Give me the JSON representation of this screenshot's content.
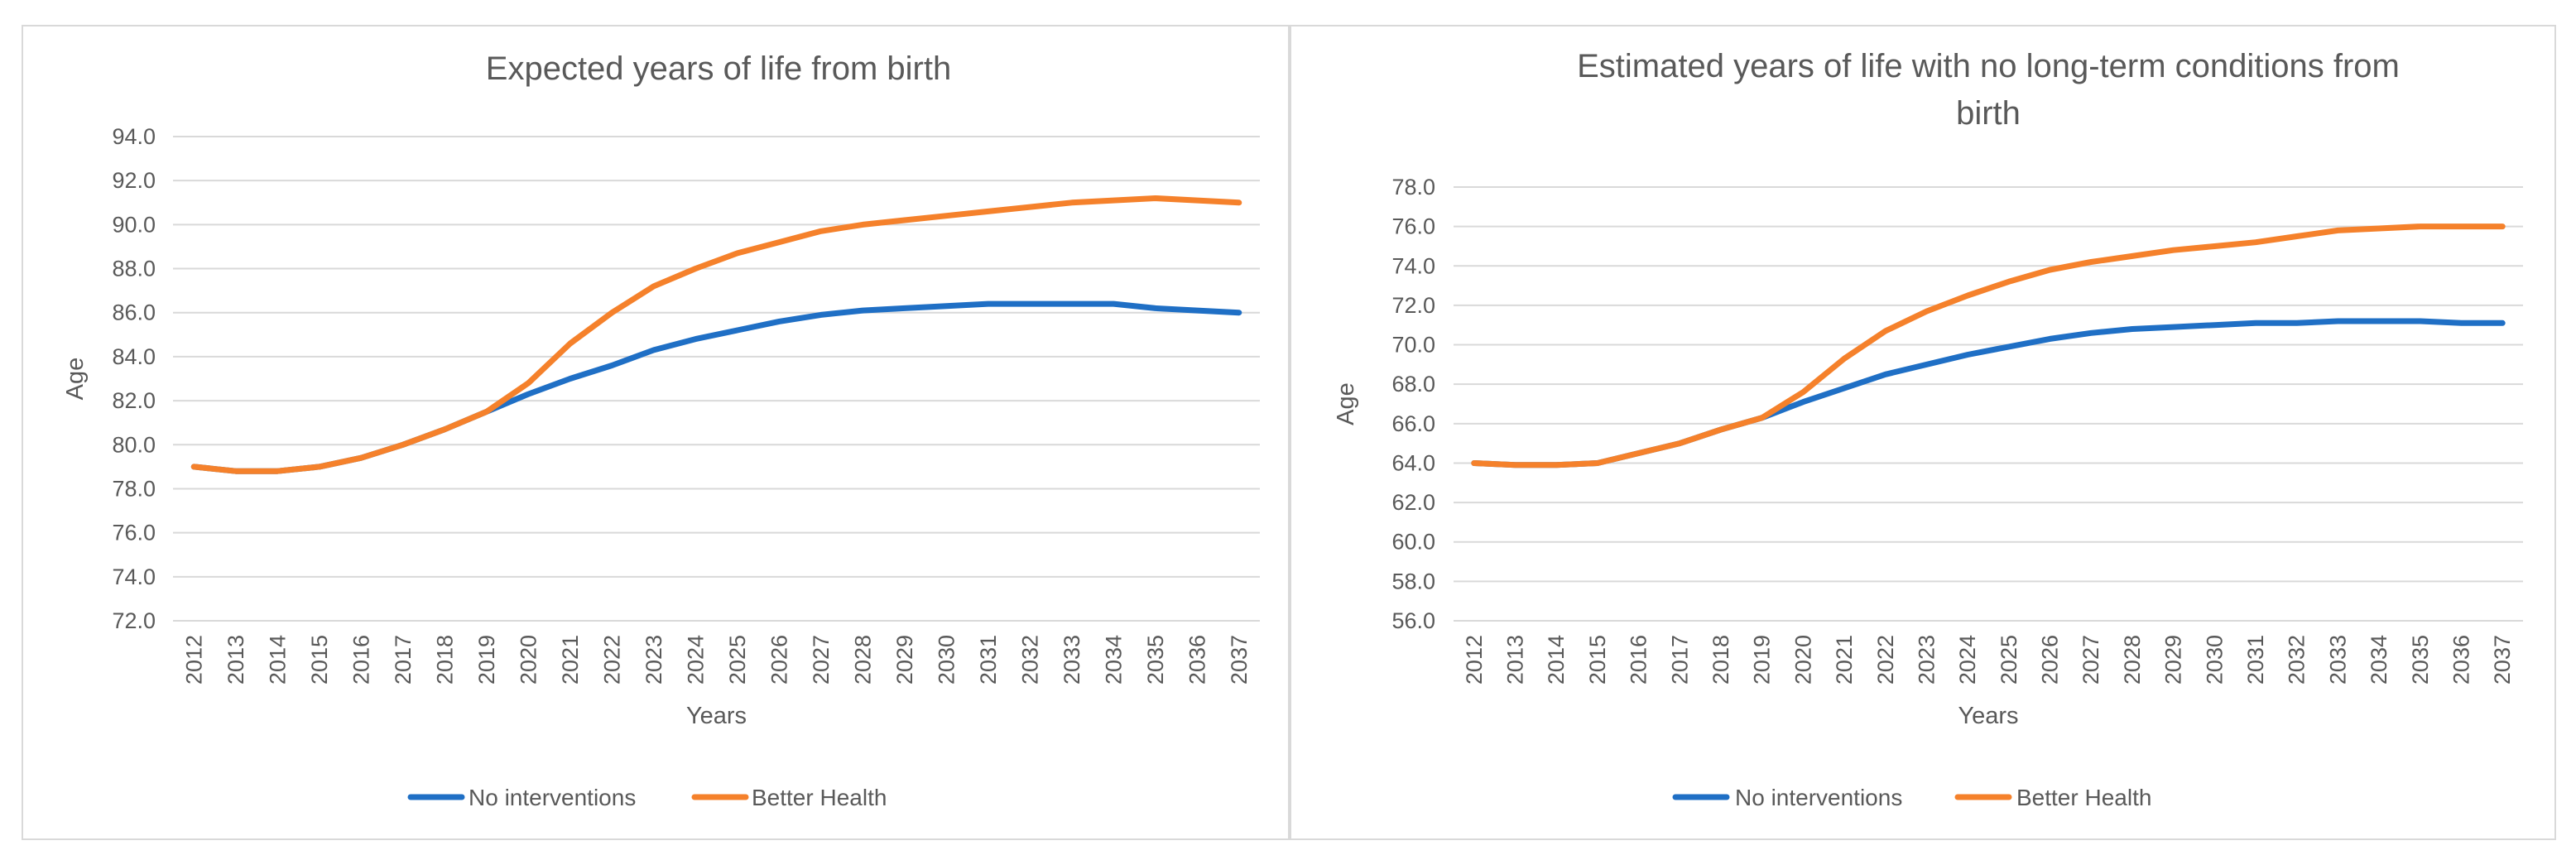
{
  "colors": {
    "no_interventions": "#1f6fc5",
    "better_health": "#f5812b"
  },
  "chart_data": [
    {
      "type": "line",
      "title": "Expected years of life from birth",
      "title_lines": [
        "Expected years of life from birth"
      ],
      "xlabel": "Years",
      "ylabel": "Age",
      "ylim": [
        72,
        94
      ],
      "yticks": [
        "72.0",
        "74.0",
        "76.0",
        "78.0",
        "80.0",
        "82.0",
        "84.0",
        "86.0",
        "88.0",
        "90.0",
        "92.0",
        "94.0"
      ],
      "x": [
        "2012",
        "2013",
        "2014",
        "2015",
        "2016",
        "2017",
        "2018",
        "2019",
        "2020",
        "2021",
        "2022",
        "2023",
        "2024",
        "2025",
        "2026",
        "2027",
        "2028",
        "2029",
        "2030",
        "2031",
        "2032",
        "2033",
        "2034",
        "2035",
        "2036",
        "2037"
      ],
      "grid": true,
      "legend": "bottom",
      "series": [
        {
          "name": "No interventions",
          "color_key": "no_interventions",
          "values": [
            79.0,
            78.8,
            78.8,
            79.0,
            79.4,
            80.0,
            80.7,
            81.5,
            82.3,
            83.0,
            83.6,
            84.3,
            84.8,
            85.2,
            85.6,
            85.9,
            86.1,
            86.2,
            86.3,
            86.4,
            86.4,
            86.4,
            86.4,
            86.2,
            86.1,
            86.0
          ]
        },
        {
          "name": "Better Health",
          "color_key": "better_health",
          "values": [
            79.0,
            78.8,
            78.8,
            79.0,
            79.4,
            80.0,
            80.7,
            81.5,
            82.8,
            84.6,
            86.0,
            87.2,
            88.0,
            88.7,
            89.2,
            89.7,
            90.0,
            90.2,
            90.4,
            90.6,
            90.8,
            91.0,
            91.1,
            91.2,
            91.1,
            91.0
          ]
        }
      ]
    },
    {
      "type": "line",
      "title": "Estimated years of life with no long-term conditions from birth",
      "title_lines": [
        "Estimated years of life with no long-term conditions from",
        "birth"
      ],
      "xlabel": "Years",
      "ylabel": "Age",
      "ylim": [
        56,
        78
      ],
      "yticks": [
        "56.0",
        "58.0",
        "60.0",
        "62.0",
        "64.0",
        "66.0",
        "68.0",
        "70.0",
        "72.0",
        "74.0",
        "76.0",
        "78.0"
      ],
      "x": [
        "2012",
        "2013",
        "2014",
        "2015",
        "2016",
        "2017",
        "2018",
        "2019",
        "2020",
        "2021",
        "2022",
        "2023",
        "2024",
        "2025",
        "2026",
        "2027",
        "2028",
        "2029",
        "2030",
        "2031",
        "2032",
        "2033",
        "2034",
        "2035",
        "2036",
        "2037"
      ],
      "grid": true,
      "legend": "bottom",
      "series": [
        {
          "name": "No interventions",
          "color_key": "no_interventions",
          "values": [
            64.0,
            63.9,
            63.9,
            64.0,
            64.5,
            65.0,
            65.7,
            66.3,
            67.1,
            67.8,
            68.5,
            69.0,
            69.5,
            69.9,
            70.3,
            70.6,
            70.8,
            70.9,
            71.0,
            71.1,
            71.1,
            71.2,
            71.2,
            71.2,
            71.1,
            71.1
          ]
        },
        {
          "name": "Better Health",
          "color_key": "better_health",
          "values": [
            64.0,
            63.9,
            63.9,
            64.0,
            64.5,
            65.0,
            65.7,
            66.3,
            67.6,
            69.3,
            70.7,
            71.7,
            72.5,
            73.2,
            73.8,
            74.2,
            74.5,
            74.8,
            75.0,
            75.2,
            75.5,
            75.8,
            75.9,
            76.0,
            76.0,
            76.0
          ]
        }
      ]
    }
  ]
}
